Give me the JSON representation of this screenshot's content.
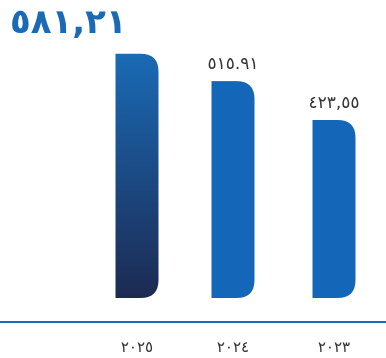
{
  "headline_value": "٥٨١,٢١",
  "chart_data": {
    "type": "bar",
    "categories": [
      "٢٠٢٥",
      "٢٠٢٤",
      "٢٠٢٣"
    ],
    "values": [
      581.21,
      515.91,
      423.55
    ],
    "value_labels": [
      "٥٨١,٢١",
      "٥١٥.٩١",
      "٤٢٣,٥٥"
    ],
    "show_value_label": [
      false,
      true,
      true
    ],
    "ylim": [
      0,
      590
    ],
    "grid": false,
    "colors": {
      "highlight_top": "#1a6ab5",
      "highlight_bottom": "#1c2a52",
      "bar": "#1466b8",
      "axis": "#1a6ab5",
      "text": "#333333"
    }
  }
}
